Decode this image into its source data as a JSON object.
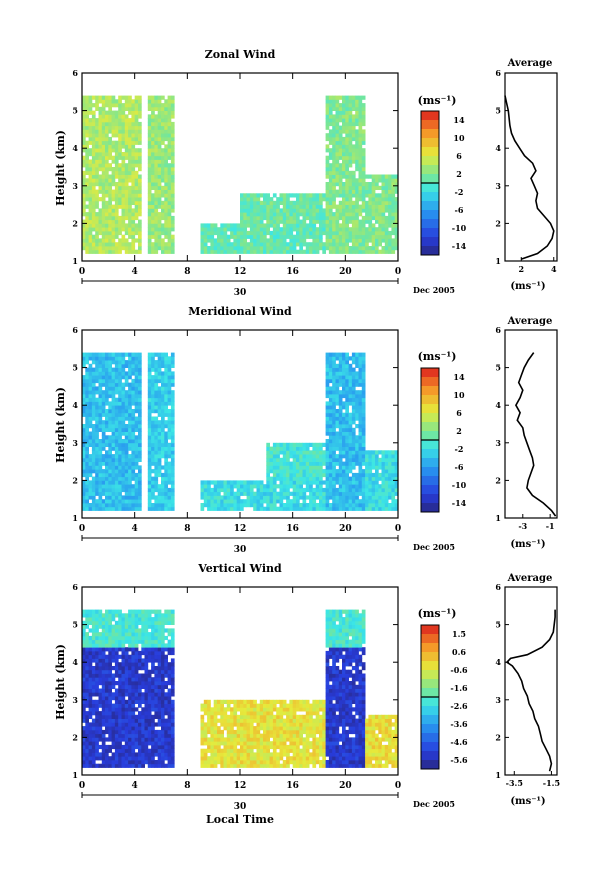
{
  "figure": {
    "shared_xlabel": "Local Time",
    "date_label": "Dec 2005",
    "day_label": "30"
  },
  "chart_data": [
    {
      "type": "heatmap",
      "title": "Zonal Wind",
      "ylabel": "Height (km)",
      "xlabel": "Local Time",
      "x_ticks": [
        "0",
        "4",
        "8",
        "12",
        "16",
        "20",
        "0"
      ],
      "xlim": [
        0,
        24
      ],
      "ylim": [
        1,
        6
      ],
      "y_ticks": [
        "1",
        "2",
        "3",
        "4",
        "5",
        "6"
      ],
      "colorbar": {
        "unit": "(ms⁻¹)",
        "ticks": [
          "14",
          "10",
          "6",
          "2",
          "-2",
          "-6",
          "-10",
          "-14"
        ],
        "range": [
          -16,
          16
        ],
        "palette": "jet"
      },
      "data_blocks": [
        {
          "t0": 0.0,
          "t1": 4.3,
          "h0": 1.2,
          "h1": 5.4,
          "value": 4
        },
        {
          "t0": 5.0,
          "t1": 7.0,
          "h0": 1.2,
          "h1": 5.4,
          "value": 3
        },
        {
          "t0": 9.0,
          "t1": 18.5,
          "h0": 1.2,
          "h1": 2.0,
          "value": 0.5
        },
        {
          "t0": 12.0,
          "t1": 18.5,
          "h0": 2.0,
          "h1": 2.8,
          "value": 1
        },
        {
          "t0": 18.5,
          "t1": 21.5,
          "h0": 1.2,
          "h1": 5.4,
          "value": 2
        },
        {
          "t0": 21.5,
          "t1": 24.0,
          "h0": 1.2,
          "h1": 3.3,
          "value": 2
        }
      ],
      "average_profile": {
        "title": "Average",
        "xlabel": "(ms⁻¹)",
        "x_ticks": [
          "2",
          "4"
        ],
        "xlim": [
          1,
          4.2
        ],
        "height": [
          1.05,
          1.2,
          1.4,
          1.6,
          1.8,
          2.0,
          2.2,
          2.4,
          2.6,
          2.8,
          3.0,
          3.2,
          3.4,
          3.6,
          3.8,
          4.0,
          4.2,
          4.4,
          4.6,
          4.8,
          5.0,
          5.2,
          5.4
        ],
        "value": [
          2.0,
          3.0,
          3.6,
          3.9,
          4.0,
          3.8,
          3.4,
          3.0,
          2.9,
          3.0,
          2.8,
          2.6,
          2.9,
          2.7,
          2.2,
          1.9,
          1.6,
          1.4,
          1.3,
          1.25,
          1.2,
          1.1,
          1.0
        ]
      }
    },
    {
      "type": "heatmap",
      "title": "Meridional Wind",
      "ylabel": "Height (km)",
      "xlabel": "Local Time",
      "x_ticks": [
        "0",
        "4",
        "8",
        "12",
        "16",
        "20",
        "0"
      ],
      "xlim": [
        0,
        24
      ],
      "ylim": [
        1,
        6
      ],
      "y_ticks": [
        "1",
        "2",
        "3",
        "4",
        "5",
        "6"
      ],
      "colorbar": {
        "unit": "(ms⁻¹)",
        "ticks": [
          "14",
          "10",
          "6",
          "2",
          "-2",
          "-6",
          "-10",
          "-14"
        ],
        "range": [
          -16,
          16
        ],
        "palette": "jet"
      },
      "data_blocks": [
        {
          "t0": 0.0,
          "t1": 4.5,
          "h0": 1.2,
          "h1": 5.4,
          "value": -4
        },
        {
          "t0": 5.0,
          "t1": 7.0,
          "h0": 1.2,
          "h1": 5.4,
          "value": -3
        },
        {
          "t0": 9.0,
          "t1": 18.5,
          "h0": 1.2,
          "h1": 2.0,
          "value": -2
        },
        {
          "t0": 14.0,
          "t1": 18.5,
          "h0": 2.0,
          "h1": 3.0,
          "value": -1
        },
        {
          "t0": 18.5,
          "t1": 21.5,
          "h0": 1.2,
          "h1": 5.4,
          "value": -4
        },
        {
          "t0": 21.5,
          "t1": 24.0,
          "h0": 1.2,
          "h1": 2.8,
          "value": -2
        }
      ],
      "average_profile": {
        "title": "Average",
        "xlabel": "(ms⁻¹)",
        "x_ticks": [
          "-3",
          "-1"
        ],
        "xlim": [
          -4.3,
          -0.5
        ],
        "height": [
          1.05,
          1.2,
          1.4,
          1.6,
          1.8,
          2.0,
          2.2,
          2.4,
          2.6,
          2.8,
          3.0,
          3.2,
          3.4,
          3.6,
          3.8,
          4.0,
          4.2,
          4.4,
          4.6,
          4.8,
          5.0,
          5.2,
          5.4
        ],
        "value": [
          -0.6,
          -0.9,
          -1.5,
          -2.3,
          -2.7,
          -2.6,
          -2.4,
          -2.2,
          -2.3,
          -2.5,
          -2.7,
          -2.9,
          -3.0,
          -3.4,
          -3.2,
          -3.5,
          -3.2,
          -3.0,
          -3.3,
          -3.1,
          -2.9,
          -2.6,
          -2.2
        ]
      }
    },
    {
      "type": "heatmap",
      "title": "Vertical Wind",
      "ylabel": "Height (km)",
      "xlabel": "Local Time",
      "x_ticks": [
        "0",
        "4",
        "8",
        "12",
        "16",
        "20",
        "0"
      ],
      "xlim": [
        0,
        24
      ],
      "ylim": [
        1,
        6
      ],
      "y_ticks": [
        "1",
        "2",
        "3",
        "4",
        "5",
        "6"
      ],
      "colorbar": {
        "unit": "(ms⁻¹)",
        "ticks": [
          "1.5",
          "0.6",
          "-0.6",
          "-1.6",
          "-2.6",
          "-3.6",
          "-4.6",
          "-5.6"
        ],
        "range": [
          -6.0,
          2.0
        ],
        "palette": "jet"
      },
      "data_blocks": [
        {
          "t0": 0.0,
          "t1": 7.0,
          "h0": 1.2,
          "h1": 4.4,
          "value": -5.2
        },
        {
          "t0": 0.0,
          "t1": 7.0,
          "h0": 4.4,
          "h1": 5.4,
          "value": -2.2
        },
        {
          "t0": 9.0,
          "t1": 18.5,
          "h0": 1.2,
          "h1": 3.0,
          "value": -0.3
        },
        {
          "t0": 18.5,
          "t1": 21.5,
          "h0": 1.2,
          "h1": 4.4,
          "value": -5.2
        },
        {
          "t0": 18.5,
          "t1": 21.5,
          "h0": 4.4,
          "h1": 5.4,
          "value": -2.2
        },
        {
          "t0": 21.5,
          "t1": 24.0,
          "h0": 1.2,
          "h1": 2.6,
          "value": -0.2
        }
      ],
      "average_profile": {
        "title": "Average",
        "xlabel": "(ms⁻¹)",
        "x_ticks": [
          "-3.5",
          "-1.5"
        ],
        "xlim": [
          -4.0,
          -1.2
        ],
        "height": [
          1.1,
          1.3,
          1.5,
          1.7,
          1.9,
          2.1,
          2.3,
          2.5,
          2.7,
          2.9,
          3.1,
          3.3,
          3.5,
          3.7,
          3.9,
          4.0,
          4.1,
          4.2,
          4.4,
          4.6,
          4.8,
          5.0,
          5.2,
          5.4
        ],
        "value": [
          -1.6,
          -1.5,
          -1.6,
          -1.8,
          -2.0,
          -2.1,
          -2.2,
          -2.4,
          -2.5,
          -2.7,
          -2.8,
          -3.0,
          -3.1,
          -3.3,
          -3.6,
          -3.9,
          -3.7,
          -2.8,
          -2.0,
          -1.6,
          -1.4,
          -1.35,
          -1.3,
          -1.3
        ]
      }
    }
  ]
}
